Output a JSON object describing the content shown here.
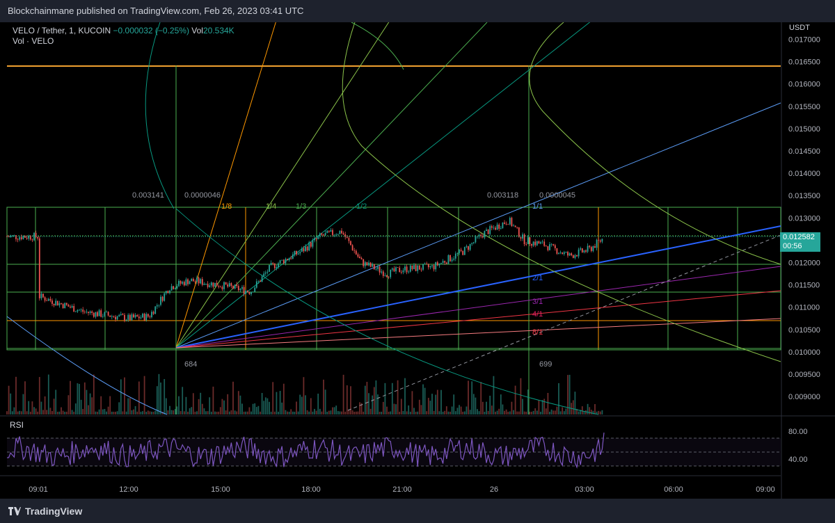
{
  "header": {
    "publisher": "Blockchainmane published on TradingView.com, Feb 26, 2023 03:41 UTC"
  },
  "legend": {
    "symbol": "VELO / Tether, 1, KUCOIN",
    "change": "−0.000032 (−0.25%)",
    "vol_label": "Vol",
    "vol_value": "20.534K",
    "indicator": "Vol · VELO"
  },
  "price_axis": {
    "currency": "USDT",
    "current_price": "0.012582",
    "countdown": "00:56"
  },
  "rsi": {
    "label": "RSI",
    "upper": "80.00",
    "lower": "40.00"
  },
  "footer": {
    "brand": "TradingView"
  },
  "colors": {
    "background": "#000000",
    "candle_up": "#26a69a",
    "candle_down": "#ef5350",
    "gann_box": "#4caf50",
    "fan_primary": "#2962ff",
    "fan_light": "#5b9cf6",
    "fan_violet": "#9c27b0",
    "fan_red": "#f23645",
    "fan_orange": "#ff9800",
    "rsi_line": "#7e57c2",
    "resistance": "#f0a030"
  },
  "annotations": {
    "box_labels": [
      "0.003141",
      "0.0000046",
      "0.003118",
      "0.0000045",
      "684",
      "699"
    ],
    "fan_labels": [
      {
        "text": "1/8",
        "color": "#ff9800"
      },
      {
        "text": "1/4",
        "color": "#8bc34a"
      },
      {
        "text": "1/3",
        "color": "#4caf50"
      },
      {
        "text": "1/2",
        "color": "#089981"
      },
      {
        "text": "1/1",
        "color": "#5b9cf6"
      },
      {
        "text": "2/1",
        "color": "#2962ff"
      },
      {
        "text": "3/1",
        "color": "#9c27b0"
      },
      {
        "text": "4/1",
        "color": "#e91e63"
      },
      {
        "text": "8/1",
        "color": "#f23645"
      }
    ]
  },
  "chart_data": {
    "type": "candlestick",
    "title": "VELO / Tether, 1, KUCOIN",
    "y_axis": {
      "ticks": [
        "0.017000",
        "0.016500",
        "0.016000",
        "0.015500",
        "0.015000",
        "0.014500",
        "0.014000",
        "0.013500",
        "0.013000",
        "0.012500",
        "0.012000",
        "0.011500",
        "0.011000",
        "0.010500",
        "0.010000",
        "0.009500",
        "0.009000"
      ],
      "range": [
        0.0088,
        0.0173
      ]
    },
    "x_axis": {
      "ticks": [
        "09:01",
        "12:00",
        "15:00",
        "18:00",
        "21:00",
        "26",
        "03:00",
        "06:00",
        "09:00"
      ]
    },
    "price_path": [
      [
        "09:01",
        0.01125
      ],
      [
        "10:30",
        0.0109
      ],
      [
        "12:00",
        0.01075
      ],
      [
        "12:40",
        0.0108
      ],
      [
        "13:20",
        0.01145
      ],
      [
        "14:00",
        0.0116
      ],
      [
        "15:00",
        0.0115
      ],
      [
        "16:00",
        0.01135
      ],
      [
        "16:40",
        0.0119
      ],
      [
        "17:40",
        0.01225
      ],
      [
        "18:20",
        0.0126
      ],
      [
        "19:00",
        0.0127
      ],
      [
        "19:40",
        0.012
      ],
      [
        "20:30",
        0.01175
      ],
      [
        "21:00",
        0.01185
      ],
      [
        "22:00",
        0.0119
      ],
      [
        "23:00",
        0.01225
      ],
      [
        "23:40",
        0.01265
      ],
      [
        "00:30",
        0.01295
      ],
      [
        "01:00",
        0.0125
      ],
      [
        "01:40",
        0.0124
      ],
      [
        "02:30",
        0.01215
      ],
      [
        "03:10",
        0.0123
      ],
      [
        "03:41",
        0.012582
      ]
    ],
    "rsi_range": [
      40,
      80
    ],
    "horizontal_level": 0.0164
  }
}
